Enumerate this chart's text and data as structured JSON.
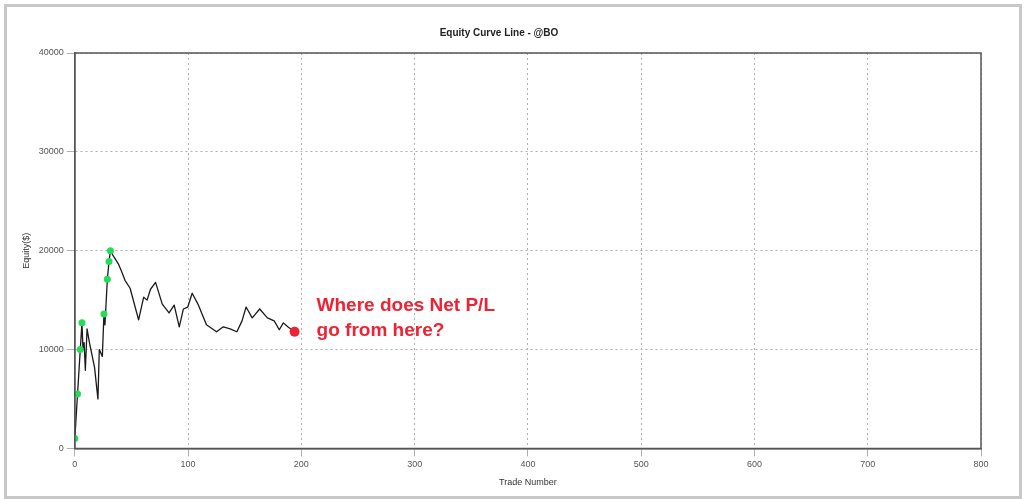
{
  "chart_data": {
    "type": "line",
    "title": "Equity Curve Line - @BO",
    "xlabel": "Trade Number",
    "ylabel": "Equity($)",
    "xlim": [
      0,
      800
    ],
    "xticks": [
      0,
      100,
      200,
      300,
      400,
      500,
      600,
      700,
      800
    ],
    "ylim": [
      0,
      40000
    ],
    "yticks": [
      0,
      10000,
      20000,
      30000,
      40000
    ],
    "grid": true,
    "legend": false,
    "series": [
      {
        "color": "#1a1a1a",
        "marker": "none",
        "x": [
          0,
          2.4,
          4.8,
          6.3,
          7.2,
          8.2,
          9.3,
          10.8,
          12.9,
          17.4,
          20.4,
          21.6,
          24.3,
          25.7,
          26.6,
          28.7,
          30.2,
          31.4,
          33.8,
          38.3,
          41.3,
          44.3,
          48.8,
          56.3,
          60.8,
          63.8,
          66.8,
          71.3,
          77.2,
          83.2,
          87.7,
          92.2,
          95.8,
          99.7,
          103.6,
          108.7,
          116.2,
          125.1,
          131.1,
          137.1,
          143.1,
          147.6,
          151.2,
          156.6,
          163.2,
          170,
          176,
          180.5,
          184.1,
          188,
          194
        ],
        "values": [
          1000,
          5500,
          10000,
          12700,
          10000,
          10700,
          7900,
          12100,
          10700,
          8200,
          5000,
          10000,
          9300,
          13600,
          12500,
          17100,
          18900,
          20000,
          19500,
          18700,
          17900,
          17000,
          16200,
          13000,
          15300,
          15000,
          16100,
          16800,
          14600,
          13700,
          14500,
          12300,
          14100,
          14300,
          15700,
          14600,
          12500,
          11800,
          12300,
          12100,
          11800,
          12900,
          14300,
          13200,
          14100,
          13200,
          12900,
          12000,
          12700,
          12300,
          11800
        ]
      },
      {
        "type": "scatter",
        "color": "#22dd55",
        "marker": "circle",
        "x": [
          0,
          2.4,
          4.8,
          6.3,
          25.7,
          28.7,
          30.2,
          31.4
        ],
        "values": [
          1000,
          5500,
          10000,
          12700,
          13600,
          17100,
          18900,
          20000
        ]
      },
      {
        "type": "scatter",
        "color": "#ee2233",
        "marker": "circle",
        "x": [
          194
        ],
        "values": [
          11800
        ]
      }
    ],
    "annotations": [
      {
        "text": "Where does Net P/L go from here?",
        "x": 194,
        "y": 11800
      }
    ]
  }
}
